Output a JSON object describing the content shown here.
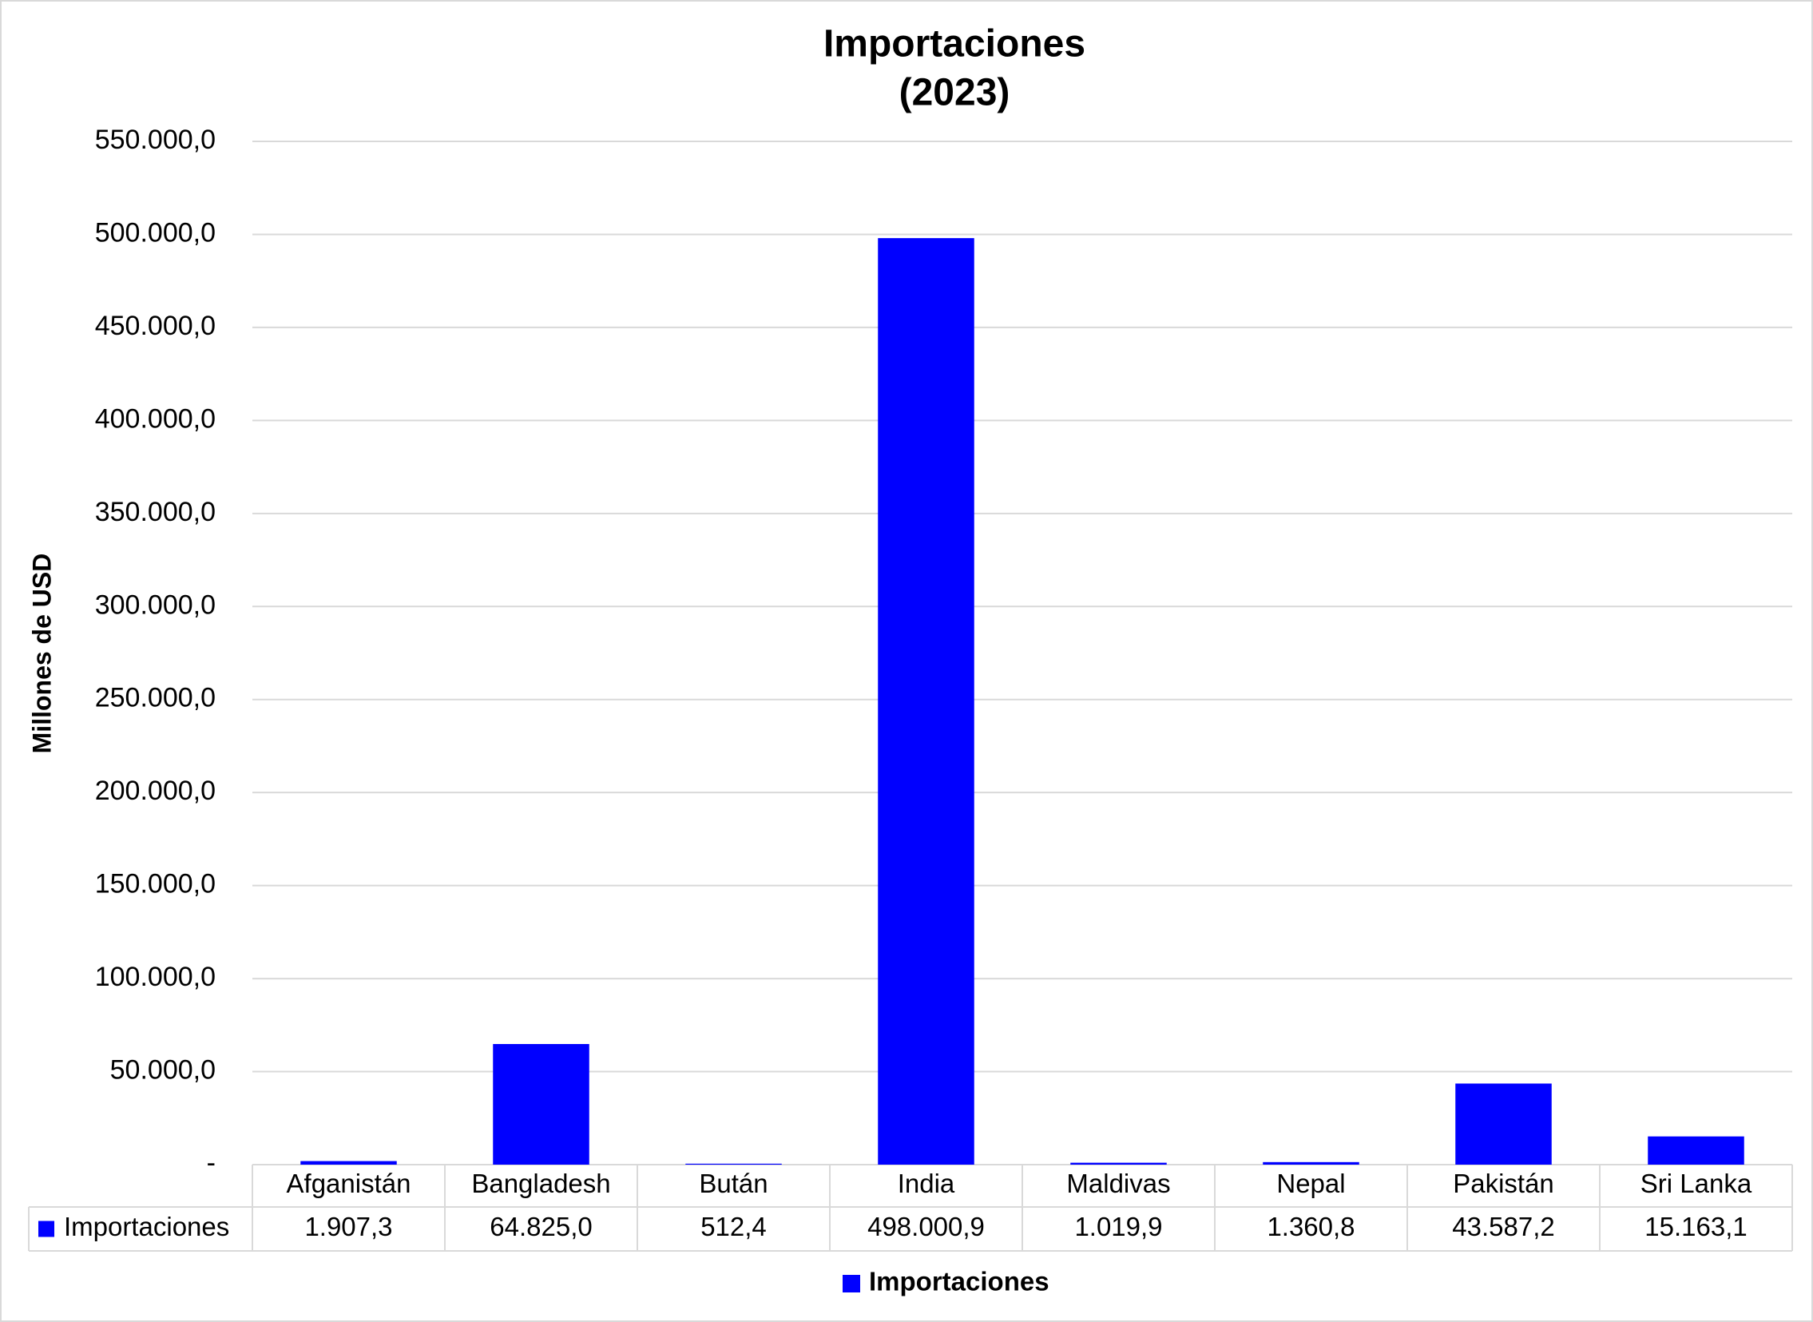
{
  "chart_data": {
    "type": "bar",
    "title": "Importaciones",
    "subtitle": "(2023)",
    "y_label": "Millones de USD",
    "categories": [
      "Afganistán",
      "Bangladesh",
      "Bután",
      "India",
      "Maldivas",
      "Nepal",
      "Pakistán",
      "Sri Lanka"
    ],
    "series": [
      {
        "name": "Importaciones",
        "color": "#0000ff",
        "values": [
          1907.3,
          64825.0,
          512.4,
          498000.9,
          1019.9,
          1360.8,
          43587.2,
          15163.1
        ],
        "value_labels": [
          "1.907,3",
          "64.825,0",
          "512,4",
          "498.000,9",
          "1.019,9",
          "1.360,8",
          "43.587,2",
          "15.163,1"
        ]
      }
    ],
    "ylim": [
      0,
      550000
    ],
    "yticks": [
      {
        "value": 0,
        "label": "-"
      },
      {
        "value": 50000,
        "label": "50.000,0"
      },
      {
        "value": 100000,
        "label": "100.000,0"
      },
      {
        "value": 150000,
        "label": "150.000,0"
      },
      {
        "value": 200000,
        "label": "200.000,0"
      },
      {
        "value": 250000,
        "label": "250.000,0"
      },
      {
        "value": 300000,
        "label": "300.000,0"
      },
      {
        "value": 350000,
        "label": "350.000,0"
      },
      {
        "value": 400000,
        "label": "400.000,0"
      },
      {
        "value": 450000,
        "label": "450.000,0"
      },
      {
        "value": 500000,
        "label": "500.000,0"
      },
      {
        "value": 550000,
        "label": "550.000,0"
      }
    ],
    "grid": true,
    "legend": "bottom"
  }
}
